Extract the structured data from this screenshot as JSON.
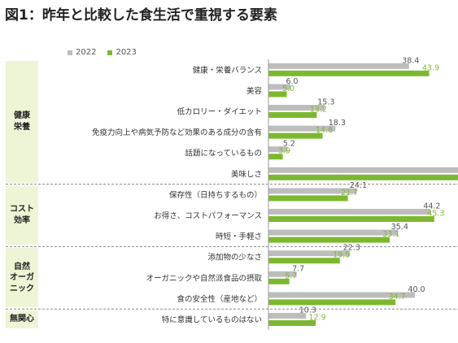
{
  "title": "図1：昨年と比較した食生活で重視する要素",
  "legend": [
    {
      "label": "2022",
      "color": "#bdbdbd"
    },
    {
      "label": "2023",
      "color": "#7cb82f"
    }
  ],
  "groups": [
    {
      "label": "健康\n栄養",
      "rows": 6
    },
    {
      "label": "コスト\n効率",
      "rows": 3
    },
    {
      "label": "自然\nオーガ\nニック",
      "rows": 3
    },
    {
      "label": "無関心",
      "rows": 1
    }
  ],
  "chart_data": {
    "type": "bar",
    "orientation": "horizontal",
    "categories": [
      "健康・栄養バランス",
      "美容",
      "低カロリー・ダイエット",
      "免疫力向上や病気予防など効果のある成分の含有",
      "話題になっているもの",
      "美味しさ",
      "保存性（日持ちするもの）",
      "お得さ、コストパフォーマンス",
      "時短・手軽さ",
      "添加物の少なさ",
      "オーガニックや自然派食品の摂取",
      "食の安全性（産地など）",
      "特に意識しているものはない"
    ],
    "series": [
      {
        "name": "2022",
        "color": "#bdbdbd",
        "values": [
          38.4,
          6.0,
          15.3,
          18.3,
          5.2,
          null,
          24.1,
          44.2,
          35.4,
          22.3,
          7.7,
          40.0,
          10.3
        ],
        "labels": [
          "38.4",
          "6.0",
          "15.3",
          "18.3",
          "5.2",
          null,
          "24.1",
          "44.2",
          "35.4",
          "22.3",
          "7.7",
          "40.0",
          "10.3"
        ]
      },
      {
        "name": "2023",
        "color": "#7cb82f",
        "values": [
          43.9,
          5.0,
          13.2,
          14.8,
          3.9,
          null,
          21.7,
          45.3,
          33.1,
          19.5,
          5.7,
          34.7,
          12.9
        ],
        "labels": [
          "43.9",
          "5.0",
          "13.2",
          "14.8",
          "3.9",
          null,
          "21.7",
          "45.3",
          "33.1",
          "19.5",
          "5.7",
          "34.7",
          "12.9"
        ]
      }
    ],
    "note": "美味しさ bars extend beyond the visible plot edge; values not shown",
    "grid": false
  }
}
